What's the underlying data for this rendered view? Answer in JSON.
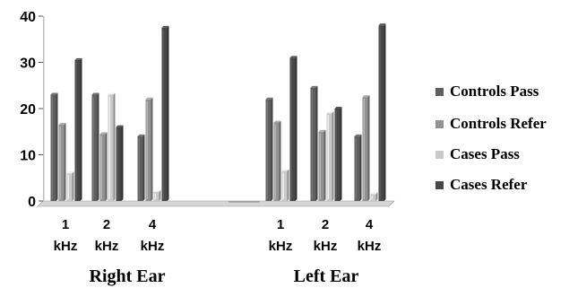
{
  "chart_data": {
    "type": "bar",
    "title": "",
    "ylim": [
      0,
      40
    ],
    "yticks": [
      "0",
      "10",
      "20",
      "30",
      "40"
    ],
    "legend_position": "right",
    "groups": [
      {
        "label": "Right Ear",
        "categories": [
          {
            "line1": "1",
            "line2": "kHz"
          },
          {
            "line1": "2",
            "line2": "kHz"
          },
          {
            "line1": "4",
            "line2": "kHz"
          }
        ]
      },
      {
        "label": "Left  Ear",
        "categories": [
          {
            "line1": "1",
            "line2": "kHz"
          },
          {
            "line1": "2",
            "line2": "kHz"
          },
          {
            "line1": "4",
            "line2": "kHz"
          }
        ]
      }
    ],
    "series": [
      {
        "name": "Controls Pass",
        "color": "#5f5f5f",
        "values": [
          23,
          23,
          14,
          22,
          24.5,
          14
        ]
      },
      {
        "name": "Controls Refer",
        "color": "#929292",
        "values": [
          16.5,
          14.5,
          22,
          17,
          15,
          22.5
        ]
      },
      {
        "name": "Cases Pass",
        "color": "#c9c9c9",
        "values": [
          6,
          23,
          2,
          6.5,
          19,
          1.5
        ]
      },
      {
        "name": "Cases Refer",
        "color": "#474747",
        "values": [
          30.5,
          16,
          37.5,
          31,
          20,
          38
        ]
      }
    ]
  }
}
